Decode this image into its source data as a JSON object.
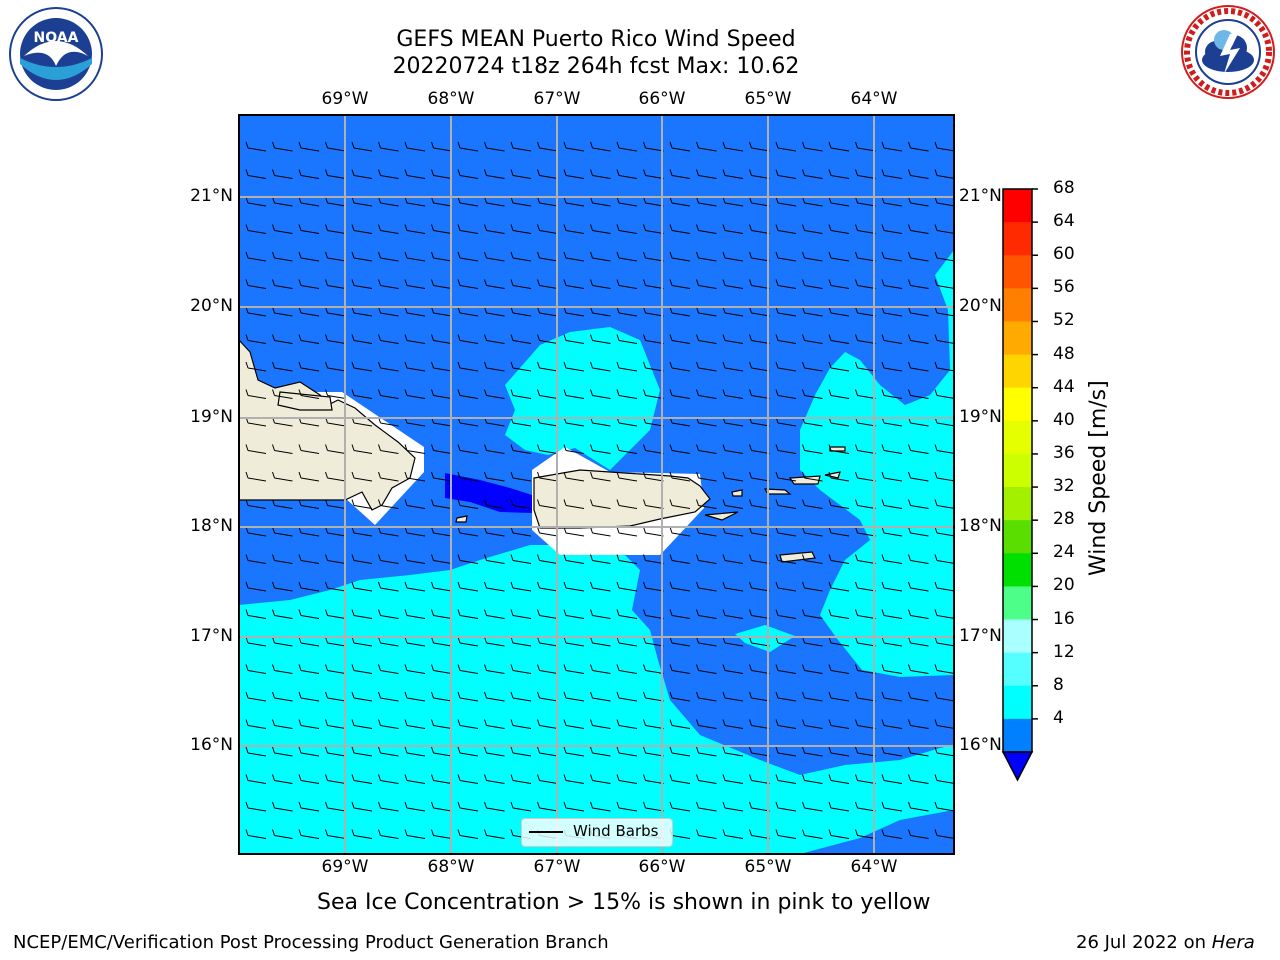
{
  "title_line1": "GEFS MEAN Puerto Rico Wind Speed",
  "title_line2": "20220724 t18z 264h fcst   Max: 10.62",
  "lon_labels": [
    "69°W",
    "68°W",
    "67°W",
    "66°W",
    "65°W",
    "64°W"
  ],
  "lat_labels": [
    "21°N",
    "20°N",
    "19°N",
    "18°N",
    "17°N",
    "16°N"
  ],
  "legend": {
    "label": "Wind Barbs"
  },
  "sea_ice_note": "Sea Ice Concentration > 15% is shown in pink to yellow",
  "footer": {
    "left": "NCEP/EMC/Verification Post Processing Product Generation Branch",
    "date": "26 Jul 2022 on ",
    "machine": "Hera"
  },
  "colorbar": {
    "label": "Wind Speed [m/s]",
    "ticks": [
      "68",
      "64",
      "60",
      "56",
      "52",
      "48",
      "44",
      "40",
      "36",
      "32",
      "28",
      "24",
      "20",
      "16",
      "12",
      "8",
      "4"
    ],
    "colors": [
      "#ff0000",
      "#ff2a00",
      "#ff5500",
      "#ff8000",
      "#ffaa00",
      "#ffd500",
      "#ffff00",
      "#e6ff00",
      "#ccff00",
      "#a3f000",
      "#5ade00",
      "#00e000",
      "#4dff88",
      "#aaffff",
      "#55ffff",
      "#00ffff",
      "#0080ff"
    ],
    "extend_color": "#0000ff"
  },
  "fill_colors": {
    "speed_4_8": "#1a75ff",
    "speed_8_12": "#00ffff",
    "speed_below_4": "#0000ff",
    "land": "#efedda",
    "masked": "#ffffff"
  },
  "logos": {
    "noaa": "NOAA",
    "nws": "NATIONAL WEATHER SERVICE"
  }
}
